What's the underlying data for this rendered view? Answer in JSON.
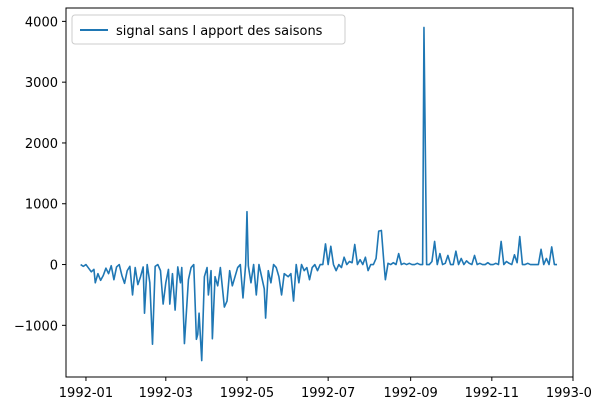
{
  "chart_data": {
    "type": "line",
    "title": "",
    "xlabel": "",
    "ylabel": "",
    "legend": {
      "placement": "top-left",
      "entries": [
        "signal sans l apport des saisons"
      ]
    },
    "grid": false,
    "xlim": [
      "1991-12-17",
      "1993-01-01"
    ],
    "ylim": [
      -1850,
      4220
    ],
    "xticks": [
      {
        "date": "1992-01-01",
        "label": "1992-01"
      },
      {
        "date": "1992-03-01",
        "label": "1992-03"
      },
      {
        "date": "1992-05-01",
        "label": "1992-05"
      },
      {
        "date": "1992-07-01",
        "label": "1992-07"
      },
      {
        "date": "1992-09-01",
        "label": "1992-09"
      },
      {
        "date": "1992-11-01",
        "label": "1992-11"
      },
      {
        "date": "1993-01-01",
        "label": "1993-01"
      }
    ],
    "yticks": [
      {
        "value": -1000,
        "label": "−1000"
      },
      {
        "value": 0,
        "label": "0"
      },
      {
        "value": 1000,
        "label": "1000"
      },
      {
        "value": 2000,
        "label": "2000"
      },
      {
        "value": 3000,
        "label": "3000"
      },
      {
        "value": 4000,
        "label": "4000"
      }
    ],
    "series": [
      {
        "name": "signal sans l apport des saisons",
        "color": "#1f77b4",
        "points": [
          [
            "1991-12-28",
            0
          ],
          [
            "1991-12-30",
            -30
          ],
          [
            "1992-01-01",
            0
          ],
          [
            "1992-01-03",
            -60
          ],
          [
            "1992-01-05",
            -120
          ],
          [
            "1992-01-07",
            -80
          ],
          [
            "1992-01-08",
            -300
          ],
          [
            "1992-01-10",
            -150
          ],
          [
            "1992-01-12",
            -260
          ],
          [
            "1992-01-14",
            -180
          ],
          [
            "1992-01-16",
            -60
          ],
          [
            "1992-01-18",
            -150
          ],
          [
            "1992-01-20",
            -20
          ],
          [
            "1992-01-22",
            -250
          ],
          [
            "1992-01-24",
            -40
          ],
          [
            "1992-01-26",
            0
          ],
          [
            "1992-01-28",
            -180
          ],
          [
            "1992-01-30",
            -310
          ],
          [
            "1992-02-01",
            -100
          ],
          [
            "1992-02-03",
            -30
          ],
          [
            "1992-02-05",
            -500
          ],
          [
            "1992-02-07",
            -50
          ],
          [
            "1992-02-09",
            -330
          ],
          [
            "1992-02-11",
            -200
          ],
          [
            "1992-02-13",
            -40
          ],
          [
            "1992-02-14",
            -800
          ],
          [
            "1992-02-16",
            0
          ],
          [
            "1992-02-18",
            -300
          ],
          [
            "1992-02-20",
            -1310
          ],
          [
            "1992-02-22",
            -30
          ],
          [
            "1992-02-24",
            0
          ],
          [
            "1992-02-26",
            -100
          ],
          [
            "1992-02-28",
            -650
          ],
          [
            "1992-03-01",
            -300
          ],
          [
            "1992-03-03",
            -80
          ],
          [
            "1992-03-04",
            -650
          ],
          [
            "1992-03-06",
            -150
          ],
          [
            "1992-03-08",
            -750
          ],
          [
            "1992-03-10",
            -40
          ],
          [
            "1992-03-12",
            -300
          ],
          [
            "1992-03-13",
            -50
          ],
          [
            "1992-03-15",
            -1300
          ],
          [
            "1992-03-16",
            -950
          ],
          [
            "1992-03-18",
            -250
          ],
          [
            "1992-03-20",
            -50
          ],
          [
            "1992-03-22",
            0
          ],
          [
            "1992-03-24",
            -1230
          ],
          [
            "1992-03-25",
            -1150
          ],
          [
            "1992-03-26",
            -800
          ],
          [
            "1992-03-28",
            -1580
          ],
          [
            "1992-03-30",
            -200
          ],
          [
            "1992-04-01",
            -50
          ],
          [
            "1992-04-02",
            -500
          ],
          [
            "1992-04-04",
            -100
          ],
          [
            "1992-04-05",
            -1220
          ],
          [
            "1992-04-07",
            -200
          ],
          [
            "1992-04-09",
            -350
          ],
          [
            "1992-04-11",
            -50
          ],
          [
            "1992-04-13",
            -480
          ],
          [
            "1992-04-14",
            -700
          ],
          [
            "1992-04-16",
            -600
          ],
          [
            "1992-04-18",
            -100
          ],
          [
            "1992-04-20",
            -350
          ],
          [
            "1992-04-22",
            -200
          ],
          [
            "1992-04-24",
            -50
          ],
          [
            "1992-04-26",
            0
          ],
          [
            "1992-04-28",
            -550
          ],
          [
            "1992-04-30",
            0
          ],
          [
            "1992-05-01",
            870
          ],
          [
            "1992-05-02",
            -20
          ],
          [
            "1992-05-04",
            -300
          ],
          [
            "1992-05-06",
            0
          ],
          [
            "1992-05-08",
            -500
          ],
          [
            "1992-05-10",
            0
          ],
          [
            "1992-05-12",
            -200
          ],
          [
            "1992-05-14",
            -400
          ],
          [
            "1992-05-15",
            -880
          ],
          [
            "1992-05-17",
            -100
          ],
          [
            "1992-05-19",
            -300
          ],
          [
            "1992-05-21",
            0
          ],
          [
            "1992-05-23",
            -50
          ],
          [
            "1992-05-25",
            -200
          ],
          [
            "1992-05-27",
            -500
          ],
          [
            "1992-05-29",
            -150
          ],
          [
            "1992-06-01",
            -200
          ],
          [
            "1992-06-03",
            -150
          ],
          [
            "1992-06-05",
            -600
          ],
          [
            "1992-06-07",
            0
          ],
          [
            "1992-06-09",
            -300
          ],
          [
            "1992-06-11",
            0
          ],
          [
            "1992-06-13",
            -100
          ],
          [
            "1992-06-15",
            -50
          ],
          [
            "1992-06-17",
            -250
          ],
          [
            "1992-06-19",
            -50
          ],
          [
            "1992-06-21",
            0
          ],
          [
            "1992-06-23",
            -100
          ],
          [
            "1992-06-25",
            0
          ],
          [
            "1992-06-27",
            0
          ],
          [
            "1992-06-29",
            340
          ],
          [
            "1992-07-01",
            0
          ],
          [
            "1992-07-03",
            300
          ],
          [
            "1992-07-05",
            0
          ],
          [
            "1992-07-07",
            -100
          ],
          [
            "1992-07-09",
            0
          ],
          [
            "1992-07-11",
            -50
          ],
          [
            "1992-07-13",
            120
          ],
          [
            "1992-07-15",
            0
          ],
          [
            "1992-07-17",
            50
          ],
          [
            "1992-07-19",
            30
          ],
          [
            "1992-07-21",
            330
          ],
          [
            "1992-07-23",
            0
          ],
          [
            "1992-07-25",
            80
          ],
          [
            "1992-07-27",
            0
          ],
          [
            "1992-07-29",
            120
          ],
          [
            "1992-07-31",
            -100
          ],
          [
            "1992-08-02",
            0
          ],
          [
            "1992-08-04",
            0
          ],
          [
            "1992-08-06",
            100
          ],
          [
            "1992-08-08",
            550
          ],
          [
            "1992-08-10",
            560
          ],
          [
            "1992-08-12",
            0
          ],
          [
            "1992-08-13",
            -250
          ],
          [
            "1992-08-15",
            20
          ],
          [
            "1992-08-17",
            0
          ],
          [
            "1992-08-19",
            30
          ],
          [
            "1992-08-21",
            0
          ],
          [
            "1992-08-23",
            180
          ],
          [
            "1992-08-25",
            0
          ],
          [
            "1992-08-27",
            20
          ],
          [
            "1992-08-29",
            0
          ],
          [
            "1992-08-31",
            20
          ],
          [
            "1992-09-02",
            0
          ],
          [
            "1992-09-04",
            0
          ],
          [
            "1992-09-06",
            20
          ],
          [
            "1992-09-08",
            0
          ],
          [
            "1992-09-10",
            0
          ],
          [
            "1992-09-11",
            3900
          ],
          [
            "1992-09-13",
            0
          ],
          [
            "1992-09-15",
            0
          ],
          [
            "1992-09-17",
            50
          ],
          [
            "1992-09-19",
            380
          ],
          [
            "1992-09-21",
            0
          ],
          [
            "1992-09-23",
            180
          ],
          [
            "1992-09-25",
            0
          ],
          [
            "1992-09-27",
            20
          ],
          [
            "1992-09-29",
            150
          ],
          [
            "1992-10-01",
            0
          ],
          [
            "1992-10-03",
            0
          ],
          [
            "1992-10-05",
            220
          ],
          [
            "1992-10-07",
            0
          ],
          [
            "1992-10-09",
            100
          ],
          [
            "1992-10-11",
            0
          ],
          [
            "1992-10-13",
            60
          ],
          [
            "1992-10-15",
            20
          ],
          [
            "1992-10-17",
            0
          ],
          [
            "1992-10-19",
            150
          ],
          [
            "1992-10-21",
            0
          ],
          [
            "1992-10-23",
            20
          ],
          [
            "1992-10-25",
            0
          ],
          [
            "1992-10-27",
            0
          ],
          [
            "1992-10-29",
            30
          ],
          [
            "1992-10-31",
            0
          ],
          [
            "1992-11-02",
            0
          ],
          [
            "1992-11-04",
            20
          ],
          [
            "1992-11-06",
            0
          ],
          [
            "1992-11-08",
            380
          ],
          [
            "1992-11-10",
            0
          ],
          [
            "1992-11-12",
            50
          ],
          [
            "1992-11-14",
            20
          ],
          [
            "1992-11-16",
            0
          ],
          [
            "1992-11-18",
            160
          ],
          [
            "1992-11-20",
            30
          ],
          [
            "1992-11-22",
            460
          ],
          [
            "1992-11-24",
            0
          ],
          [
            "1992-11-26",
            0
          ],
          [
            "1992-11-28",
            20
          ],
          [
            "1992-11-30",
            0
          ],
          [
            "1992-12-02",
            0
          ],
          [
            "1992-12-04",
            0
          ],
          [
            "1992-12-06",
            0
          ],
          [
            "1992-12-08",
            250
          ],
          [
            "1992-12-10",
            0
          ],
          [
            "1992-12-12",
            100
          ],
          [
            "1992-12-14",
            0
          ],
          [
            "1992-12-16",
            290
          ],
          [
            "1992-12-18",
            0
          ],
          [
            "1992-12-20",
            0
          ]
        ]
      }
    ]
  }
}
